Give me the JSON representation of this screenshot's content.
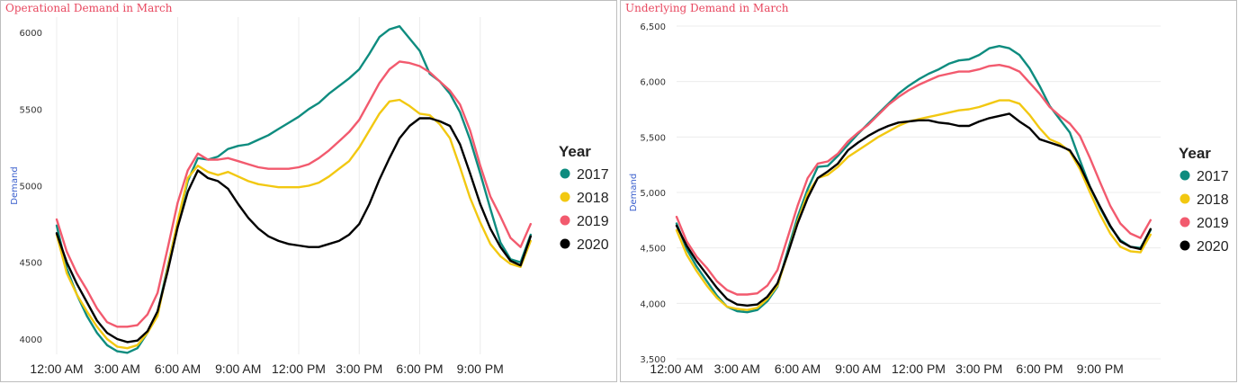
{
  "chart_data": [
    {
      "type": "line",
      "title": "Operational Demand in March",
      "ylabel": "Demand",
      "xlabel": "",
      "ylim": [
        3900,
        6100
      ],
      "yticks": [
        {
          "value": 4000,
          "label": "4000"
        },
        {
          "value": 4500,
          "label": "4500"
        },
        {
          "value": 5000,
          "label": "5000"
        },
        {
          "value": 5500,
          "label": "5500"
        },
        {
          "value": 6000,
          "label": "6000"
        }
      ],
      "xticks": [
        {
          "value": 0,
          "label": "12:00 AM"
        },
        {
          "value": 3,
          "label": "3:00 AM"
        },
        {
          "value": 6,
          "label": "6:00 AM"
        },
        {
          "value": 9,
          "label": "9:00 AM"
        },
        {
          "value": 12,
          "label": "12:00 PM"
        },
        {
          "value": 15,
          "label": "3:00 PM"
        },
        {
          "value": 18,
          "label": "6:00 PM"
        },
        {
          "value": 21,
          "label": "9:00 PM"
        }
      ],
      "legend_title": "Year",
      "legend_position": "right",
      "grid": "vertical",
      "x": [
        0,
        0.5,
        1,
        1.5,
        2,
        2.5,
        3,
        3.5,
        4,
        4.5,
        5,
        5.5,
        6,
        6.5,
        7,
        7.5,
        8,
        8.5,
        9,
        9.5,
        10,
        10.5,
        11,
        11.5,
        12,
        12.5,
        13,
        13.5,
        14,
        14.5,
        15,
        15.5,
        16,
        16.5,
        17,
        17.5,
        18,
        18.5,
        19,
        19.5,
        20,
        20.5,
        21,
        21.5,
        22,
        22.5,
        23,
        23.5
      ],
      "series": [
        {
          "name": "2017",
          "color": "#0e8c7f",
          "values": [
            4740,
            4460,
            4290,
            4150,
            4040,
            3960,
            3920,
            3910,
            3940,
            4040,
            4170,
            4470,
            4760,
            5030,
            5180,
            5170,
            5190,
            5240,
            5260,
            5270,
            5300,
            5330,
            5370,
            5410,
            5450,
            5500,
            5540,
            5600,
            5650,
            5700,
            5760,
            5860,
            5970,
            6020,
            6040,
            5960,
            5880,
            5730,
            5680,
            5600,
            5480,
            5300,
            5080,
            4850,
            4630,
            4520,
            4500,
            4680
          ]
        },
        {
          "name": "2018",
          "color": "#f2c811",
          "values": [
            4680,
            4430,
            4290,
            4180,
            4080,
            4000,
            3950,
            3940,
            3960,
            4040,
            4150,
            4460,
            4770,
            5050,
            5130,
            5090,
            5070,
            5090,
            5060,
            5030,
            5010,
            5000,
            4990,
            4990,
            4990,
            5000,
            5020,
            5060,
            5110,
            5160,
            5250,
            5360,
            5470,
            5550,
            5560,
            5520,
            5470,
            5460,
            5400,
            5310,
            5120,
            4920,
            4760,
            4620,
            4540,
            4490,
            4470,
            4640
          ]
        },
        {
          "name": "2019",
          "color": "#f25a6e",
          "values": [
            4780,
            4570,
            4430,
            4320,
            4200,
            4110,
            4080,
            4080,
            4090,
            4160,
            4300,
            4590,
            4890,
            5100,
            5210,
            5170,
            5170,
            5180,
            5160,
            5140,
            5120,
            5110,
            5110,
            5110,
            5120,
            5140,
            5180,
            5230,
            5290,
            5350,
            5430,
            5550,
            5670,
            5760,
            5810,
            5800,
            5780,
            5740,
            5680,
            5620,
            5530,
            5360,
            5130,
            4930,
            4800,
            4660,
            4600,
            4750
          ]
        },
        {
          "name": "2020",
          "color": "#000000",
          "values": [
            4690,
            4500,
            4360,
            4240,
            4120,
            4040,
            4000,
            3980,
            3990,
            4050,
            4180,
            4440,
            4730,
            4960,
            5100,
            5050,
            5030,
            4980,
            4880,
            4790,
            4720,
            4670,
            4640,
            4620,
            4610,
            4600,
            4600,
            4620,
            4640,
            4680,
            4750,
            4880,
            5040,
            5180,
            5310,
            5390,
            5440,
            5440,
            5420,
            5390,
            5270,
            5080,
            4880,
            4720,
            4600,
            4510,
            4480,
            4670
          ]
        }
      ]
    },
    {
      "type": "line",
      "title": "Underlying Demand in March",
      "ylabel": "Demand",
      "xlabel": "",
      "ylim": [
        3500,
        6500
      ],
      "yticks": [
        {
          "value": 3500,
          "label": "3,500"
        },
        {
          "value": 4000,
          "label": "4,000"
        },
        {
          "value": 4500,
          "label": "4,500"
        },
        {
          "value": 5000,
          "label": "5,000"
        },
        {
          "value": 5500,
          "label": "5,500"
        },
        {
          "value": 6000,
          "label": "6,000"
        },
        {
          "value": 6500,
          "label": "6,500"
        }
      ],
      "xticks": [
        {
          "value": 0,
          "label": "12:00 AM"
        },
        {
          "value": 3,
          "label": "3:00 AM"
        },
        {
          "value": 6,
          "label": "6:00 AM"
        },
        {
          "value": 9,
          "label": "9:00 AM"
        },
        {
          "value": 12,
          "label": "12:00 PM"
        },
        {
          "value": 15,
          "label": "3:00 PM"
        },
        {
          "value": 18,
          "label": "6:00 PM"
        },
        {
          "value": 21,
          "label": "9:00 PM"
        }
      ],
      "legend_title": "Year",
      "legend_position": "right",
      "grid": "horizontal",
      "x": [
        0,
        0.5,
        1,
        1.5,
        2,
        2.5,
        3,
        3.5,
        4,
        4.5,
        5,
        5.5,
        6,
        6.5,
        7,
        7.5,
        8,
        8.5,
        9,
        9.5,
        10,
        10.5,
        11,
        11.5,
        12,
        12.5,
        13,
        13.5,
        14,
        14.5,
        15,
        15.5,
        16,
        16.5,
        17,
        17.5,
        18,
        18.5,
        19,
        19.5,
        20,
        20.5,
        21,
        21.5,
        22,
        22.5,
        23,
        23.5
      ],
      "series": [
        {
          "name": "2017",
          "color": "#0e8c7f",
          "values": [
            4720,
            4490,
            4330,
            4200,
            4070,
            3970,
            3930,
            3920,
            3940,
            4020,
            4150,
            4470,
            4780,
            5030,
            5230,
            5240,
            5330,
            5430,
            5530,
            5620,
            5710,
            5800,
            5890,
            5960,
            6020,
            6070,
            6110,
            6160,
            6190,
            6200,
            6240,
            6300,
            6320,
            6300,
            6240,
            6120,
            5960,
            5780,
            5660,
            5540,
            5290,
            5050,
            4860,
            4690,
            4570,
            4510,
            4500,
            4660
          ]
        },
        {
          "name": "2018",
          "color": "#f2c811",
          "values": [
            4660,
            4440,
            4290,
            4160,
            4050,
            3970,
            3950,
            3940,
            3960,
            4040,
            4160,
            4440,
            4740,
            4990,
            5130,
            5160,
            5230,
            5320,
            5380,
            5440,
            5500,
            5550,
            5600,
            5640,
            5660,
            5680,
            5700,
            5720,
            5740,
            5750,
            5770,
            5800,
            5830,
            5830,
            5800,
            5700,
            5580,
            5480,
            5440,
            5370,
            5210,
            5000,
            4800,
            4630,
            4510,
            4470,
            4460,
            4620
          ]
        },
        {
          "name": "2019",
          "color": "#f25a6e",
          "values": [
            4780,
            4560,
            4420,
            4320,
            4200,
            4120,
            4080,
            4080,
            4090,
            4160,
            4300,
            4590,
            4880,
            5130,
            5260,
            5280,
            5350,
            5460,
            5540,
            5610,
            5700,
            5790,
            5860,
            5920,
            5970,
            6010,
            6050,
            6070,
            6090,
            6090,
            6110,
            6140,
            6150,
            6130,
            6090,
            5990,
            5890,
            5770,
            5690,
            5620,
            5510,
            5310,
            5090,
            4880,
            4720,
            4630,
            4590,
            4750
          ]
        },
        {
          "name": "2020",
          "color": "#000000",
          "values": [
            4700,
            4520,
            4380,
            4260,
            4140,
            4040,
            3990,
            3980,
            3990,
            4060,
            4180,
            4440,
            4720,
            4950,
            5130,
            5190,
            5260,
            5380,
            5450,
            5510,
            5560,
            5600,
            5630,
            5640,
            5650,
            5650,
            5630,
            5620,
            5600,
            5600,
            5640,
            5670,
            5690,
            5710,
            5640,
            5580,
            5480,
            5450,
            5420,
            5380,
            5240,
            5050,
            4870,
            4700,
            4560,
            4510,
            4490,
            4670
          ]
        }
      ]
    }
  ]
}
